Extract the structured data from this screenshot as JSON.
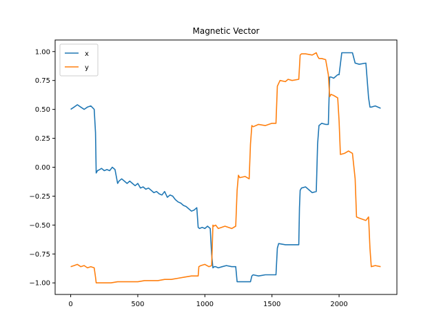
{
  "chart_data": {
    "type": "line",
    "title": "Magnetic Vector",
    "xlabel": "",
    "ylabel": "",
    "xlim": [
      -116,
      2431
    ],
    "ylim": [
      -1.1,
      1.1
    ],
    "x_ticks": [
      0,
      500,
      1000,
      1500,
      2000
    ],
    "y_ticks": [
      -1.0,
      -0.75,
      -0.5,
      -0.25,
      0.0,
      0.25,
      0.5,
      0.75,
      1.0
    ],
    "y_tick_labels": [
      "−1.00",
      "−0.75",
      "−0.50",
      "−0.25",
      "0.00",
      "0.25",
      "0.50",
      "0.75",
      "1.00"
    ],
    "x_tick_labels": [
      "0",
      "500",
      "1000",
      "1500",
      "2000"
    ],
    "grid": false,
    "legend": "top-left",
    "series": [
      {
        "name": "x",
        "color": "#1f77b4",
        "x": [
          0,
          25,
          50,
          75,
          100,
          125,
          150,
          175,
          185,
          190,
          200,
          215,
          230,
          250,
          270,
          290,
          310,
          330,
          350,
          360,
          380,
          400,
          420,
          440,
          460,
          480,
          500,
          520,
          540,
          560,
          580,
          600,
          620,
          640,
          660,
          680,
          700,
          720,
          740,
          760,
          780,
          800,
          820,
          840,
          860,
          880,
          900,
          920,
          940,
          950,
          960,
          980,
          1000,
          1020,
          1040,
          1050,
          1060,
          1070,
          1080,
          1100,
          1130,
          1160,
          1200,
          1230,
          1240,
          1250,
          1300,
          1340,
          1350,
          1360,
          1400,
          1450,
          1500,
          1530,
          1540,
          1550,
          1600,
          1650,
          1700,
          1705,
          1710,
          1720,
          1750,
          1800,
          1830,
          1840,
          1850,
          1870,
          1900,
          1920,
          1930,
          1940,
          1960,
          1990,
          2000,
          2020,
          2050,
          2070,
          2100,
          2120,
          2150,
          2200,
          2220,
          2230,
          2240,
          2270,
          2310
        ],
        "values": [
          0.5,
          0.52,
          0.54,
          0.52,
          0.5,
          0.52,
          0.53,
          0.5,
          0.3,
          -0.05,
          -0.03,
          -0.02,
          -0.01,
          -0.03,
          -0.02,
          -0.03,
          0.0,
          -0.02,
          -0.14,
          -0.12,
          -0.1,
          -0.12,
          -0.14,
          -0.12,
          -0.14,
          -0.16,
          -0.14,
          -0.18,
          -0.17,
          -0.19,
          -0.18,
          -0.2,
          -0.22,
          -0.21,
          -0.23,
          -0.24,
          -0.21,
          -0.26,
          -0.24,
          -0.25,
          -0.28,
          -0.3,
          -0.31,
          -0.33,
          -0.34,
          -0.36,
          -0.38,
          -0.37,
          -0.35,
          -0.52,
          -0.53,
          -0.52,
          -0.53,
          -0.51,
          -0.53,
          -0.75,
          -0.87,
          -0.86,
          -0.86,
          -0.87,
          -0.86,
          -0.85,
          -0.86,
          -0.86,
          -0.99,
          -0.99,
          -0.99,
          -0.99,
          -0.94,
          -0.93,
          -0.94,
          -0.93,
          -0.93,
          -0.93,
          -0.7,
          -0.66,
          -0.67,
          -0.67,
          -0.67,
          -0.35,
          -0.2,
          -0.18,
          -0.17,
          -0.22,
          -0.21,
          0.2,
          0.36,
          0.38,
          0.37,
          0.37,
          0.78,
          0.78,
          0.77,
          0.8,
          0.8,
          0.99,
          0.99,
          0.99,
          0.99,
          0.9,
          0.89,
          0.9,
          0.6,
          0.52,
          0.52,
          0.53,
          0.51
        ]
      },
      {
        "name": "y",
        "color": "#ff7f0e",
        "x": [
          0,
          25,
          50,
          75,
          100,
          125,
          150,
          175,
          185,
          190,
          220,
          250,
          300,
          350,
          400,
          450,
          500,
          550,
          600,
          650,
          700,
          750,
          800,
          850,
          900,
          950,
          955,
          970,
          1000,
          1030,
          1050,
          1055,
          1060,
          1065,
          1080,
          1100,
          1150,
          1200,
          1230,
          1240,
          1250,
          1260,
          1300,
          1330,
          1340,
          1350,
          1360,
          1400,
          1450,
          1500,
          1530,
          1540,
          1560,
          1600,
          1620,
          1650,
          1700,
          1710,
          1720,
          1750,
          1800,
          1830,
          1840,
          1850,
          1870,
          1900,
          1920,
          1930,
          1940,
          1960,
          1990,
          2000,
          2010,
          2040,
          2070,
          2100,
          2120,
          2130,
          2150,
          2200,
          2220,
          2230,
          2240,
          2270,
          2310
        ],
        "values": [
          -0.86,
          -0.85,
          -0.84,
          -0.86,
          -0.85,
          -0.87,
          -0.86,
          -0.87,
          -0.95,
          -1.0,
          -1.0,
          -1.0,
          -1.0,
          -0.99,
          -0.99,
          -0.99,
          -0.99,
          -0.98,
          -0.98,
          -0.98,
          -0.97,
          -0.97,
          -0.96,
          -0.95,
          -0.94,
          -0.94,
          -0.86,
          -0.85,
          -0.84,
          -0.86,
          -0.85,
          -0.7,
          -0.5,
          -0.51,
          -0.5,
          -0.53,
          -0.51,
          -0.53,
          -0.51,
          -0.2,
          -0.07,
          -0.09,
          -0.08,
          -0.1,
          0.2,
          0.36,
          0.35,
          0.37,
          0.36,
          0.38,
          0.38,
          0.7,
          0.75,
          0.74,
          0.76,
          0.75,
          0.76,
          0.97,
          0.98,
          0.98,
          0.97,
          0.99,
          0.96,
          0.94,
          0.94,
          0.93,
          0.8,
          0.61,
          0.63,
          0.62,
          0.6,
          0.4,
          0.11,
          0.12,
          0.14,
          0.12,
          -0.1,
          -0.43,
          -0.44,
          -0.46,
          -0.43,
          -0.7,
          -0.86,
          -0.85,
          -0.86
        ]
      }
    ]
  }
}
